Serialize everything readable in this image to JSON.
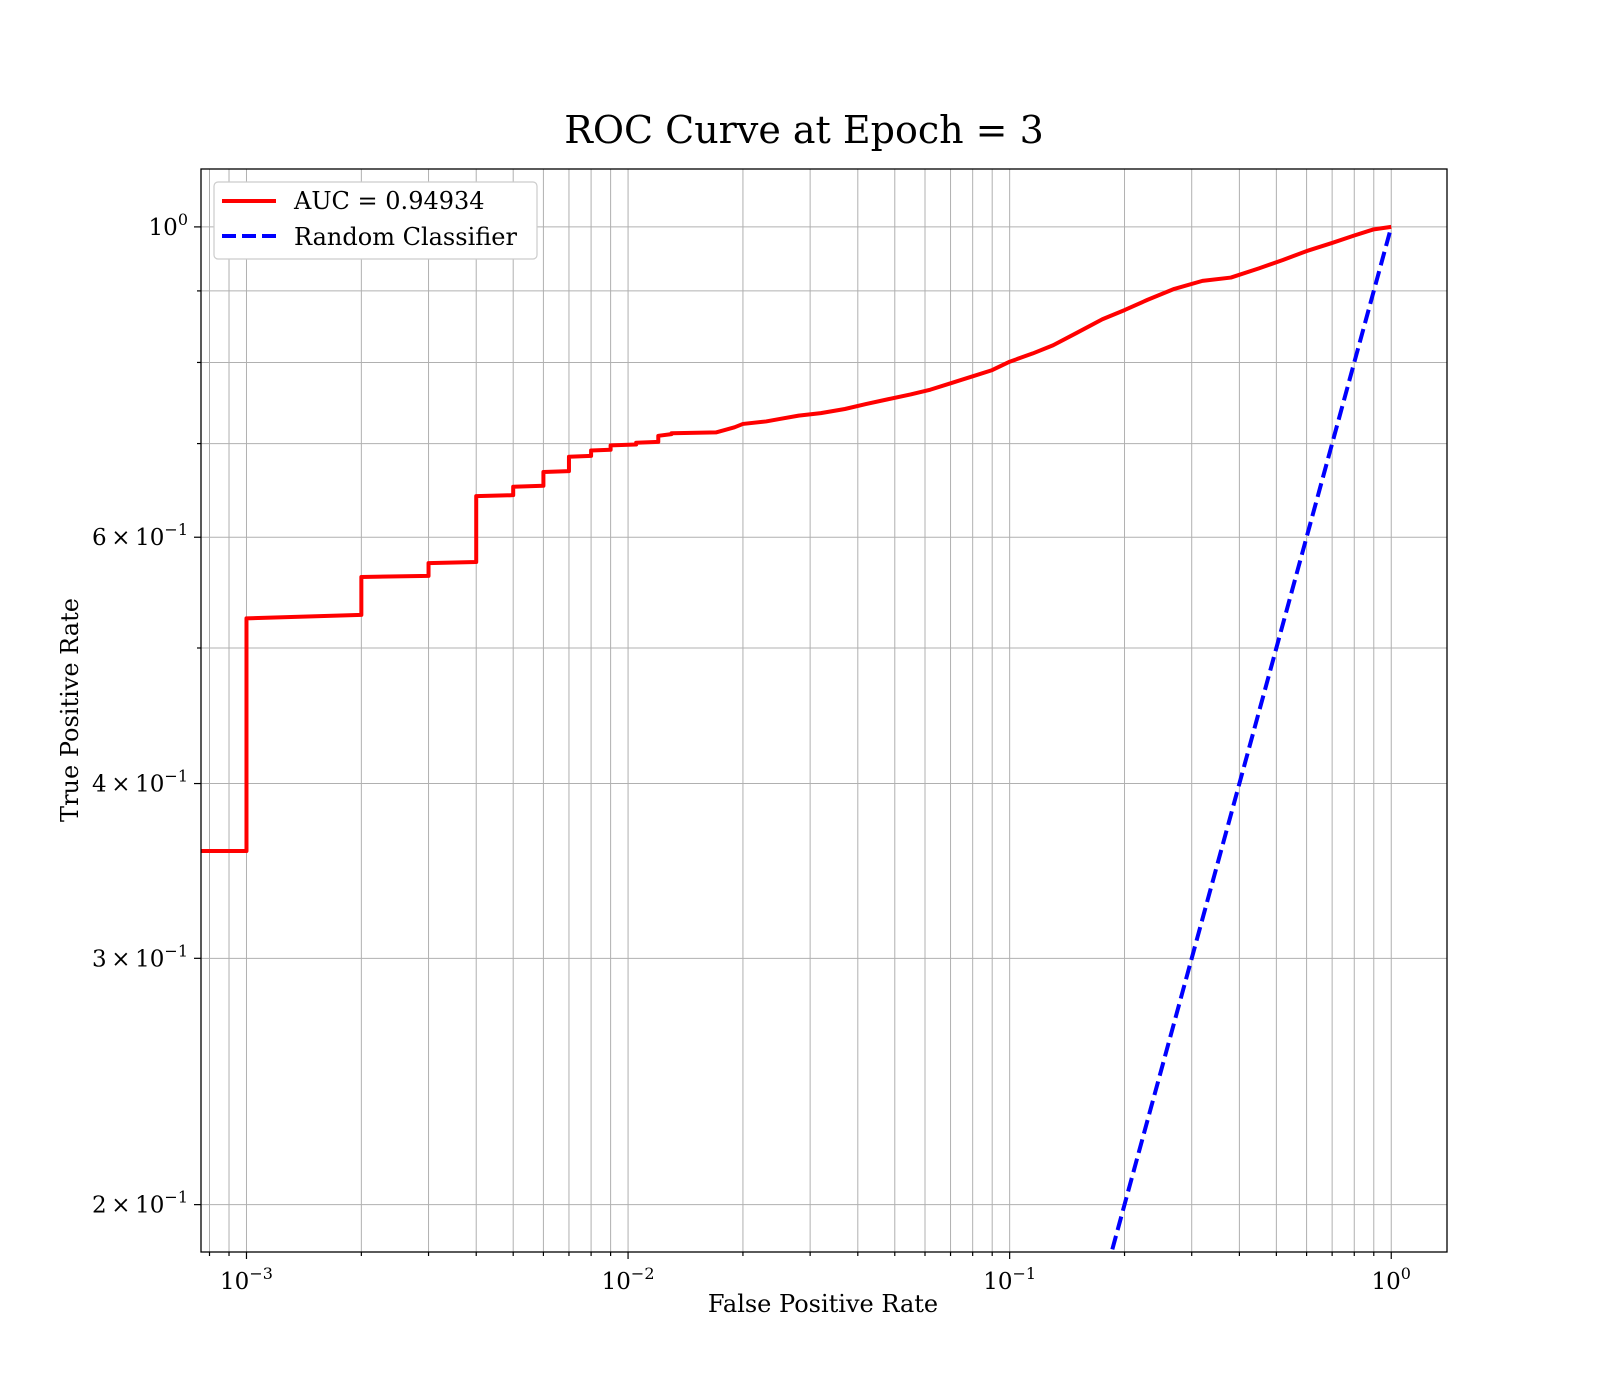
{
  "chart_data": {
    "type": "line",
    "title": "ROC Curve at Epoch = 3",
    "xlabel": "False Positive Rate",
    "ylabel": "True Positive Rate",
    "xscale": "log",
    "yscale": "log",
    "xlim": [
      0.00076,
      1.4
    ],
    "ylim": [
      0.185,
      1.1
    ],
    "grid": true,
    "grid_minor": true,
    "legend_position": "top-left",
    "x_ticks": [
      {
        "value": 0.001,
        "base": "10",
        "exp": "−3"
      },
      {
        "value": 0.01,
        "base": "10",
        "exp": "−2"
      },
      {
        "value": 0.1,
        "base": "10",
        "exp": "−1"
      },
      {
        "value": 1,
        "base": "10",
        "exp": "0"
      }
    ],
    "y_ticks": [
      {
        "value": 1.0,
        "base": "10",
        "exp": "0"
      },
      {
        "value": 0.6,
        "base": "6 × 10",
        "exp": "−1"
      },
      {
        "value": 0.4,
        "base": "4 × 10",
        "exp": "−1"
      },
      {
        "value": 0.3,
        "base": "3 × 10",
        "exp": "−1"
      },
      {
        "value": 0.2,
        "base": "2 × 10",
        "exp": "−1"
      }
    ],
    "y_minor_gridlines": [
      0.5,
      0.7,
      0.8,
      0.9
    ],
    "series": [
      {
        "name": "AUC = 0.94934",
        "color": "#ff0000",
        "style": "solid",
        "x": [
          0.00076,
          0.001,
          0.001,
          0.002,
          0.002,
          0.003,
          0.003,
          0.004,
          0.004,
          0.005,
          0.005,
          0.006,
          0.006,
          0.007,
          0.007,
          0.008,
          0.008,
          0.009,
          0.009,
          0.0105,
          0.0105,
          0.012,
          0.012,
          0.013,
          0.013,
          0.017,
          0.018,
          0.019,
          0.02,
          0.023,
          0.025,
          0.028,
          0.032,
          0.037,
          0.042,
          0.048,
          0.055,
          0.062,
          0.07,
          0.08,
          0.09,
          0.1,
          0.115,
          0.13,
          0.15,
          0.175,
          0.2,
          0.23,
          0.27,
          0.32,
          0.38,
          0.45,
          0.52,
          0.6,
          0.7,
          0.8,
          0.9,
          1.0
        ],
        "y": [
          0.358,
          0.358,
          0.525,
          0.528,
          0.562,
          0.563,
          0.575,
          0.576,
          0.642,
          0.643,
          0.652,
          0.653,
          0.668,
          0.669,
          0.685,
          0.686,
          0.692,
          0.693,
          0.698,
          0.699,
          0.701,
          0.702,
          0.709,
          0.711,
          0.712,
          0.713,
          0.716,
          0.719,
          0.723,
          0.726,
          0.729,
          0.733,
          0.736,
          0.741,
          0.747,
          0.753,
          0.759,
          0.765,
          0.773,
          0.782,
          0.79,
          0.801,
          0.812,
          0.823,
          0.84,
          0.859,
          0.872,
          0.887,
          0.903,
          0.915,
          0.92,
          0.934,
          0.947,
          0.961,
          0.974,
          0.986,
          0.996,
          1.0
        ]
      },
      {
        "name": "Random Classifier",
        "color": "#0000ff",
        "style": "dashed",
        "x": [
          0.18,
          1.0
        ],
        "y": [
          0.18,
          1.0
        ]
      }
    ]
  }
}
